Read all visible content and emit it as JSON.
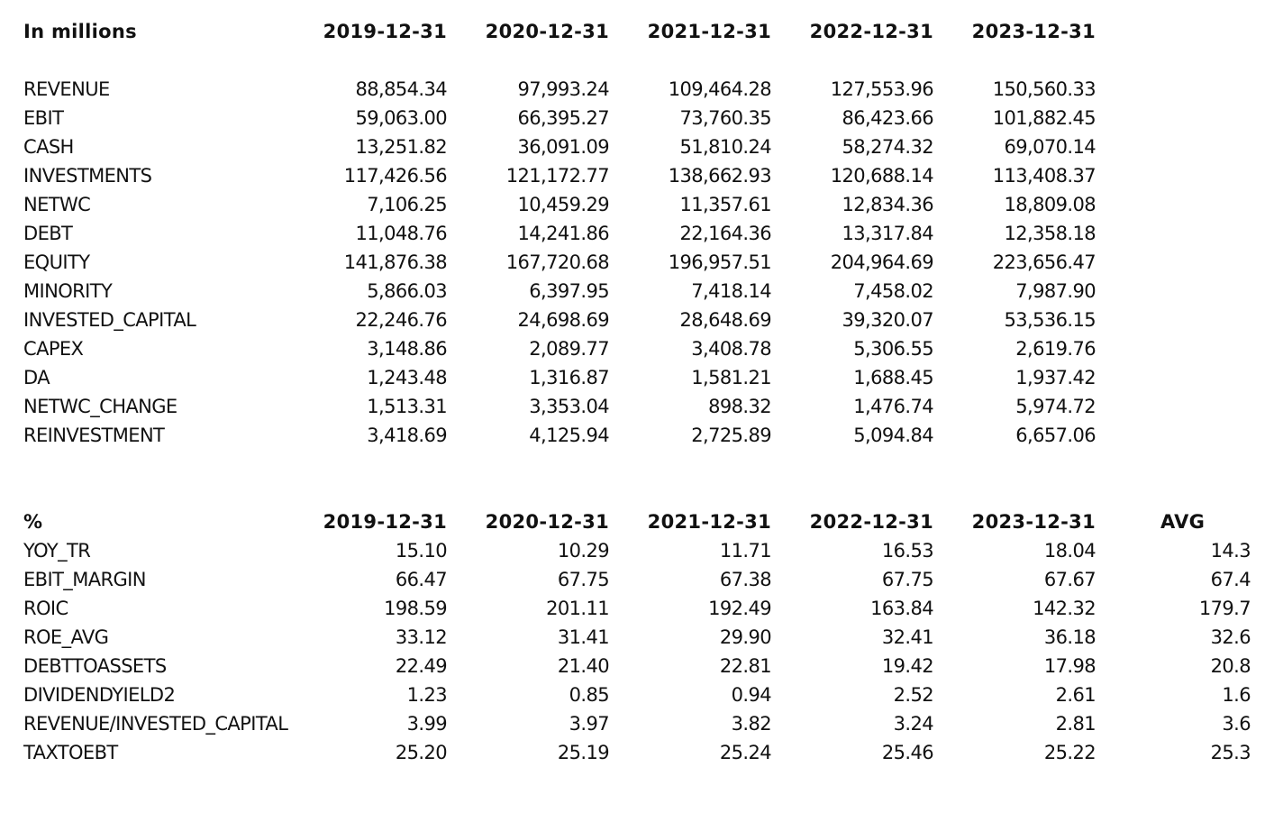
{
  "tables": [
    {
      "header": [
        "In millions",
        "2019-12-31",
        "2020-12-31",
        "2021-12-31",
        "2022-12-31",
        "2023-12-31"
      ],
      "rows": [
        [
          "REVENUE",
          "88,854.34",
          "97,993.24",
          "109,464.28",
          "127,553.96",
          "150,560.33"
        ],
        [
          "EBIT",
          "59,063.00",
          "66,395.27",
          "73,760.35",
          "86,423.66",
          "101,882.45"
        ],
        [
          "CASH",
          "13,251.82",
          "36,091.09",
          "51,810.24",
          "58,274.32",
          "69,070.14"
        ],
        [
          "INVESTMENTS",
          "117,426.56",
          "121,172.77",
          "138,662.93",
          "120,688.14",
          "113,408.37"
        ],
        [
          "NETWC",
          "7,106.25",
          "10,459.29",
          "11,357.61",
          "12,834.36",
          "18,809.08"
        ],
        [
          "DEBT",
          "11,048.76",
          "14,241.86",
          "22,164.36",
          "13,317.84",
          "12,358.18"
        ],
        [
          "EQUITY",
          "141,876.38",
          "167,720.68",
          "196,957.51",
          "204,964.69",
          "223,656.47"
        ],
        [
          "MINORITY",
          "5,866.03",
          "6,397.95",
          "7,418.14",
          "7,458.02",
          "7,987.90"
        ],
        [
          "INVESTED_CAPITAL",
          "22,246.76",
          "24,698.69",
          "28,648.69",
          "39,320.07",
          "53,536.15"
        ],
        [
          "CAPEX",
          "3,148.86",
          "2,089.77",
          "3,408.78",
          "5,306.55",
          "2,619.76"
        ],
        [
          "DA",
          "1,243.48",
          "1,316.87",
          "1,581.21",
          "1,688.45",
          "1,937.42"
        ],
        [
          "NETWC_CHANGE",
          "1,513.31",
          "3,353.04",
          "898.32",
          "1,476.74",
          "5,974.72"
        ],
        [
          "REINVESTMENT",
          "3,418.69",
          "4,125.94",
          "2,725.89",
          "5,094.84",
          "6,657.06"
        ]
      ]
    },
    {
      "header": [
        "%",
        "2019-12-31",
        "2020-12-31",
        "2021-12-31",
        "2022-12-31",
        "2023-12-31",
        "AVG"
      ],
      "rows": [
        [
          "YOY_TR",
          "15.10",
          "10.29",
          "11.71",
          "16.53",
          "18.04",
          "14.3"
        ],
        [
          "EBIT_MARGIN",
          "66.47",
          "67.75",
          "67.38",
          "67.75",
          "67.67",
          "67.4"
        ],
        [
          "ROIC",
          "198.59",
          "201.11",
          "192.49",
          "163.84",
          "142.32",
          "179.7"
        ],
        [
          "ROE_AVG",
          "33.12",
          "31.41",
          "29.90",
          "32.41",
          "36.18",
          "32.6"
        ],
        [
          "DEBTTOASSETS",
          "22.49",
          "21.40",
          "22.81",
          "19.42",
          "17.98",
          "20.8"
        ],
        [
          "DIVIDENDYIELD2",
          "1.23",
          "0.85",
          "0.94",
          "2.52",
          "2.61",
          "1.6"
        ],
        [
          "REVENUE/INVESTED_CAPITAL",
          "3.99",
          "3.97",
          "3.82",
          "3.24",
          "2.81",
          "3.6"
        ],
        [
          "TAXTOEBT",
          "25.20",
          "25.19",
          "25.24",
          "25.46",
          "25.22",
          "25.3"
        ]
      ]
    }
  ]
}
